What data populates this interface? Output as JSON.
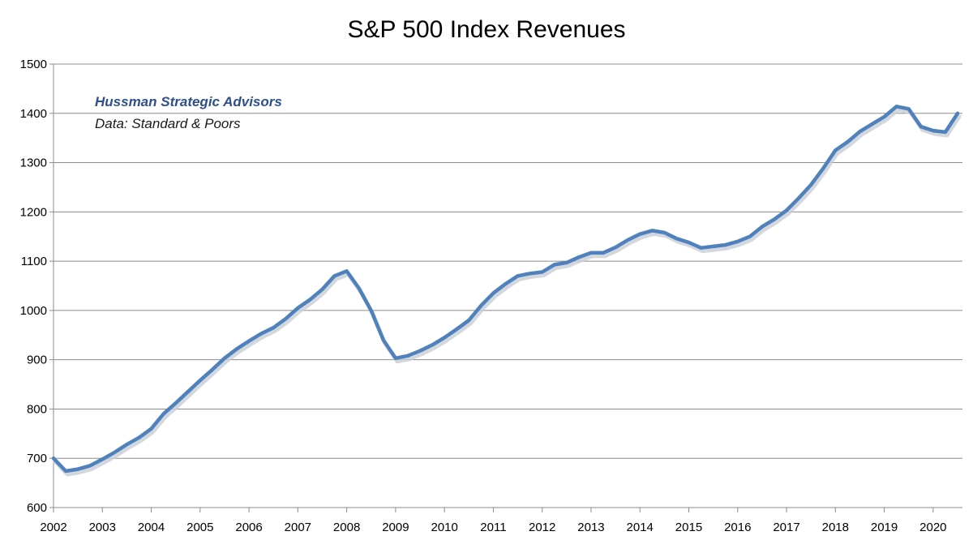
{
  "chart_data": {
    "type": "line",
    "title": "S&P 500 Index Revenues",
    "xlabel": "",
    "ylabel": "",
    "ylim": [
      600,
      1500
    ],
    "xlim": [
      2002,
      2020.6
    ],
    "y_ticks": [
      600,
      700,
      800,
      900,
      1000,
      1100,
      1200,
      1300,
      1400,
      1500
    ],
    "x_ticks": [
      "2002",
      "2003",
      "2004",
      "2005",
      "2006",
      "2007",
      "2008",
      "2009",
      "2010",
      "2011",
      "2012",
      "2013",
      "2014",
      "2015",
      "2016",
      "2017",
      "2018",
      "2019",
      "2020"
    ],
    "grid": "horizontal",
    "line_color": "#4f81bd",
    "annotations": [
      "Hussman Strategic Advisors",
      "Data: Standard & Poors"
    ],
    "annotation_colors": [
      "#2e4f8c",
      "#1a1a1a"
    ],
    "series": [
      {
        "x": [
          2002.0,
          2002.25,
          2002.5,
          2002.75,
          2003.0,
          2003.25,
          2003.5,
          2003.75,
          2004.0,
          2004.25,
          2004.5,
          2004.75,
          2005.0,
          2005.25,
          2005.5,
          2005.75,
          2006.0,
          2006.25,
          2006.5,
          2006.75,
          2007.0,
          2007.25,
          2007.5,
          2007.75,
          2008.0,
          2008.25,
          2008.5,
          2008.75,
          2009.0,
          2009.25,
          2009.5,
          2009.75,
          2010.0,
          2010.25,
          2010.5,
          2010.75,
          2011.0,
          2011.25,
          2011.5,
          2011.75,
          2012.0,
          2012.25,
          2012.5,
          2012.75,
          2013.0,
          2013.25,
          2013.5,
          2013.75,
          2014.0,
          2014.25,
          2014.5,
          2014.75,
          2015.0,
          2015.25,
          2015.5,
          2015.75,
          2016.0,
          2016.25,
          2016.5,
          2016.75,
          2017.0,
          2017.25,
          2017.5,
          2017.75,
          2018.0,
          2018.25,
          2018.5,
          2018.75,
          2019.0,
          2019.25,
          2019.5,
          2019.75,
          2020.0,
          2020.25,
          2020.5
        ],
        "values": [
          700,
          674,
          678,
          685,
          698,
          712,
          728,
          742,
          760,
          790,
          812,
          835,
          858,
          880,
          903,
          922,
          938,
          953,
          965,
          983,
          1005,
          1022,
          1043,
          1070,
          1080,
          1045,
          1000,
          940,
          903,
          908,
          918,
          930,
          945,
          962,
          980,
          1010,
          1035,
          1054,
          1070,
          1075,
          1078,
          1093,
          1097,
          1108,
          1117,
          1117,
          1128,
          1143,
          1155,
          1162,
          1158,
          1146,
          1138,
          1127,
          1130,
          1133,
          1140,
          1150,
          1170,
          1185,
          1203,
          1228,
          1255,
          1288,
          1325,
          1342,
          1363,
          1378,
          1393,
          1414,
          1409,
          1373,
          1365,
          1362,
          1400
        ]
      }
    ]
  }
}
